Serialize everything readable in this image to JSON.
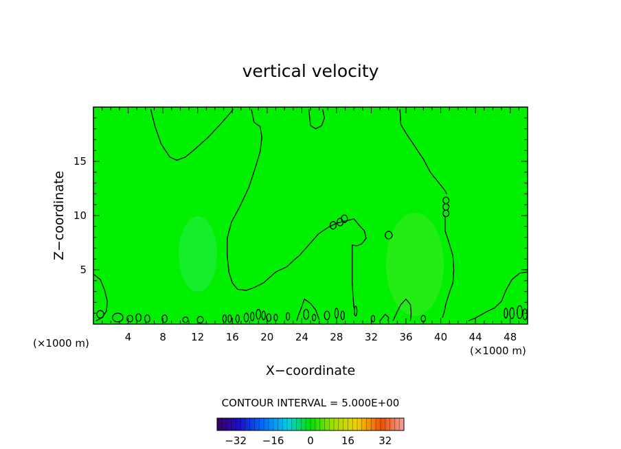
{
  "chart_data": {
    "type": "heatmap",
    "title": "vertical velocity",
    "xlabel": "X−coordinate",
    "ylabel": "Z−coordinate",
    "x_unit": "(×1000 m)",
    "x_unit_right": "(×1000 m)",
    "xlim": [
      0,
      50
    ],
    "ylim": [
      0,
      20
    ],
    "x_ticks": [
      4,
      8,
      12,
      16,
      20,
      24,
      28,
      32,
      36,
      40,
      44,
      48
    ],
    "x_minor_step": 1,
    "y_ticks": [
      5,
      10,
      15
    ],
    "y_minor_step": 1,
    "contour_interval_text": "CONTOUR INTERVAL =  5.000E+00",
    "colorbar": {
      "range": [
        -40,
        40
      ],
      "ticks": [
        -32,
        -16,
        0,
        16,
        32
      ],
      "tick_labels": [
        "−32",
        "−16",
        "0",
        "16",
        "32"
      ]
    },
    "field_color": "#00f000",
    "contours": [
      {
        "name": "zero-contour-upper-left",
        "points": [
          [
            6.6,
            19.8
          ],
          [
            7.1,
            18.2
          ],
          [
            7.8,
            16.6
          ],
          [
            8.8,
            15.4
          ],
          [
            9.6,
            15.1
          ],
          [
            10.6,
            15.4
          ],
          [
            11.8,
            16.2
          ],
          [
            13.2,
            17.2
          ],
          [
            14.6,
            18.4
          ],
          [
            15.7,
            19.4
          ],
          [
            16.1,
            19.8
          ]
        ]
      },
      {
        "name": "zero-contour-central-cell",
        "points": [
          [
            18.2,
            19.8
          ],
          [
            18.5,
            18.6
          ],
          [
            19.2,
            18.2
          ],
          [
            19.4,
            17.2
          ],
          [
            19.2,
            15.9
          ],
          [
            18.6,
            14.3
          ],
          [
            17.9,
            12.6
          ],
          [
            16.9,
            10.9
          ],
          [
            15.9,
            9.4
          ],
          [
            15.4,
            7.9
          ],
          [
            15.4,
            6.3
          ],
          [
            15.6,
            4.8
          ],
          [
            16.0,
            3.8
          ],
          [
            16.6,
            3.2
          ],
          [
            17.6,
            3.1
          ],
          [
            18.6,
            3.4
          ],
          [
            19.6,
            3.8
          ],
          [
            21.0,
            4.8
          ],
          [
            22.3,
            5.3
          ],
          [
            23.1,
            5.9
          ],
          [
            23.7,
            6.3
          ],
          [
            24.6,
            7.1
          ],
          [
            25.9,
            8.3
          ],
          [
            27.0,
            8.9
          ],
          [
            28.0,
            9.3
          ],
          [
            29.0,
            9.5
          ],
          [
            30.0,
            9.7
          ],
          [
            30.6,
            9.1
          ],
          [
            31.2,
            8.6
          ],
          [
            31.4,
            7.9
          ],
          [
            30.9,
            7.4
          ],
          [
            30.3,
            7.2
          ],
          [
            29.8,
            7.3
          ],
          [
            29.8,
            5.8
          ],
          [
            29.8,
            3.8
          ],
          [
            29.9,
            2.6
          ],
          [
            30.0,
            1.5
          ]
        ]
      },
      {
        "name": "zero-contour-right",
        "points": [
          [
            35.3,
            19.8
          ],
          [
            35.4,
            18.4
          ],
          [
            36.0,
            17.6
          ],
          [
            37.0,
            16.4
          ],
          [
            38.0,
            15.2
          ],
          [
            38.8,
            14.0
          ],
          [
            39.6,
            13.2
          ],
          [
            40.4,
            12.4
          ],
          [
            40.7,
            12.0
          ]
        ]
      },
      {
        "name": "zero-contour-right-lower",
        "points": [
          [
            40.5,
            9.9
          ],
          [
            40.5,
            8.6
          ],
          [
            41.0,
            7.4
          ],
          [
            41.4,
            6.3
          ],
          [
            41.5,
            5.0
          ],
          [
            41.4,
            3.8
          ],
          [
            41.0,
            2.9
          ],
          [
            40.6,
            1.9
          ],
          [
            40.4,
            1.1
          ],
          [
            40.2,
            0.6
          ]
        ]
      },
      {
        "name": "zero-contour-top-blip",
        "points": [
          [
            24.8,
            19.8
          ],
          [
            25.0,
            18.3
          ],
          [
            25.6,
            18.0
          ],
          [
            26.3,
            18.3
          ],
          [
            26.6,
            19.0
          ],
          [
            26.4,
            19.8
          ]
        ]
      },
      {
        "name": "zero-contour-left-edge",
        "points": [
          [
            0,
            4.6
          ],
          [
            0.8,
            4.1
          ],
          [
            1.3,
            3.1
          ],
          [
            1.6,
            2.1
          ],
          [
            1.5,
            1.2
          ],
          [
            1.0,
            0.6
          ],
          [
            0.3,
            0.3
          ]
        ]
      },
      {
        "name": "zero-contour-right-edge",
        "points": [
          [
            50,
            4.8
          ],
          [
            49.1,
            4.7
          ],
          [
            48.2,
            4.1
          ],
          [
            47.5,
            3.1
          ],
          [
            47.0,
            2.1
          ],
          [
            46.2,
            1.5
          ],
          [
            45.2,
            1.1
          ],
          [
            44.1,
            0.6
          ],
          [
            43.2,
            0.3
          ]
        ]
      },
      {
        "name": "zero-contour-lower-mid",
        "points": [
          [
            34.5,
            0.3
          ],
          [
            34.9,
            1.0
          ],
          [
            35.4,
            1.8
          ],
          [
            36.0,
            2.3
          ],
          [
            36.5,
            1.8
          ],
          [
            36.6,
            1.0
          ],
          [
            36.5,
            0.3
          ]
        ]
      },
      {
        "name": "zero-contour-lower-mid-2",
        "points": [
          [
            26.0,
            0.4
          ],
          [
            25.6,
            1.3
          ],
          [
            25.0,
            1.9
          ],
          [
            24.3,
            2.3
          ],
          [
            24.0,
            1.6
          ],
          [
            23.6,
            0.8
          ],
          [
            23.4,
            0.3
          ]
        ]
      },
      {
        "name": "zero-contour-lower-mid-3",
        "points": [
          [
            33.0,
            0.3
          ],
          [
            33.6,
            0.9
          ],
          [
            34.0,
            0.6
          ],
          [
            33.9,
            0.3
          ]
        ]
      }
    ],
    "closed_contours": [
      {
        "name": "small-cell-a",
        "cx": 27.6,
        "cy": 9.1,
        "rx": 0.35,
        "ry": 0.35
      },
      {
        "name": "small-cell-b",
        "cx": 28.4,
        "cy": 9.4,
        "rx": 0.35,
        "ry": 0.35
      },
      {
        "name": "small-cell-c",
        "cx": 28.9,
        "cy": 9.7,
        "rx": 0.35,
        "ry": 0.35
      },
      {
        "name": "small-cell-d",
        "cx": 34.0,
        "cy": 8.2,
        "rx": 0.4,
        "ry": 0.35
      },
      {
        "name": "small-cell-e",
        "cx": 40.6,
        "cy": 11.4,
        "rx": 0.35,
        "ry": 0.3
      },
      {
        "name": "small-cell-f",
        "cx": 40.6,
        "cy": 10.8,
        "rx": 0.35,
        "ry": 0.3
      },
      {
        "name": "small-cell-g",
        "cx": 40.6,
        "cy": 10.2,
        "rx": 0.35,
        "ry": 0.3
      },
      {
        "name": "surface-cell-1",
        "cx": 0.8,
        "cy": 0.9,
        "rx": 0.4,
        "ry": 0.35
      },
      {
        "name": "surface-cell-2",
        "cx": 2.8,
        "cy": 0.6,
        "rx": 0.6,
        "ry": 0.4
      },
      {
        "name": "surface-cell-3",
        "cx": 4.2,
        "cy": 0.5,
        "rx": 0.35,
        "ry": 0.3
      },
      {
        "name": "surface-cell-4",
        "cx": 5.2,
        "cy": 0.6,
        "rx": 0.3,
        "ry": 0.35
      },
      {
        "name": "surface-cell-5",
        "cx": 6.2,
        "cy": 0.5,
        "rx": 0.3,
        "ry": 0.35
      },
      {
        "name": "surface-cell-6",
        "cx": 8.2,
        "cy": 0.5,
        "rx": 0.3,
        "ry": 0.35
      },
      {
        "name": "surface-cell-7",
        "cx": 10.6,
        "cy": 0.4,
        "rx": 0.3,
        "ry": 0.25
      },
      {
        "name": "surface-cell-8",
        "cx": 12.3,
        "cy": 0.4,
        "rx": 0.35,
        "ry": 0.3
      },
      {
        "name": "surface-cell-9",
        "cx": 15.1,
        "cy": 0.5,
        "rx": 0.2,
        "ry": 0.35
      },
      {
        "name": "surface-cell-10",
        "cx": 15.7,
        "cy": 0.5,
        "rx": 0.2,
        "ry": 0.35
      },
      {
        "name": "surface-cell-11",
        "cx": 16.6,
        "cy": 0.5,
        "rx": 0.2,
        "ry": 0.35
      },
      {
        "name": "surface-cell-12",
        "cx": 17.6,
        "cy": 0.6,
        "rx": 0.25,
        "ry": 0.4
      },
      {
        "name": "surface-cell-13",
        "cx": 18.3,
        "cy": 0.7,
        "rx": 0.2,
        "ry": 0.4
      },
      {
        "name": "surface-cell-14",
        "cx": 19.0,
        "cy": 0.9,
        "rx": 0.25,
        "ry": 0.45
      },
      {
        "name": "surface-cell-15",
        "cx": 19.6,
        "cy": 0.8,
        "rx": 0.2,
        "ry": 0.4
      },
      {
        "name": "surface-cell-16",
        "cx": 20.2,
        "cy": 0.6,
        "rx": 0.25,
        "ry": 0.35
      },
      {
        "name": "surface-cell-17",
        "cx": 21.0,
        "cy": 0.6,
        "rx": 0.2,
        "ry": 0.3
      },
      {
        "name": "surface-cell-18",
        "cx": 22.4,
        "cy": 0.7,
        "rx": 0.2,
        "ry": 0.35
      },
      {
        "name": "surface-cell-19",
        "cx": 24.5,
        "cy": 0.9,
        "rx": 0.3,
        "ry": 0.45
      },
      {
        "name": "surface-cell-20",
        "cx": 25.4,
        "cy": 0.6,
        "rx": 0.2,
        "ry": 0.3
      },
      {
        "name": "surface-cell-21",
        "cx": 26.9,
        "cy": 0.8,
        "rx": 0.3,
        "ry": 0.4
      },
      {
        "name": "surface-cell-22",
        "cx": 28.0,
        "cy": 1.0,
        "rx": 0.2,
        "ry": 0.45
      },
      {
        "name": "surface-cell-23",
        "cx": 28.7,
        "cy": 0.8,
        "rx": 0.2,
        "ry": 0.4
      },
      {
        "name": "surface-cell-24",
        "cx": 30.2,
        "cy": 1.2,
        "rx": 0.15,
        "ry": 0.45
      },
      {
        "name": "surface-cell-25",
        "cx": 32.2,
        "cy": 0.5,
        "rx": 0.2,
        "ry": 0.3
      },
      {
        "name": "surface-cell-26",
        "cx": 38.0,
        "cy": 0.5,
        "rx": 0.25,
        "ry": 0.3
      },
      {
        "name": "surface-cell-27",
        "cx": 47.5,
        "cy": 1.0,
        "rx": 0.2,
        "ry": 0.45
      },
      {
        "name": "surface-cell-28",
        "cx": 48.2,
        "cy": 1.0,
        "rx": 0.25,
        "ry": 0.5
      },
      {
        "name": "surface-cell-29",
        "cx": 49.1,
        "cy": 1.1,
        "rx": 0.3,
        "ry": 0.6
      },
      {
        "name": "surface-cell-30",
        "cx": 49.7,
        "cy": 0.9,
        "rx": 0.25,
        "ry": 0.5
      }
    ]
  }
}
